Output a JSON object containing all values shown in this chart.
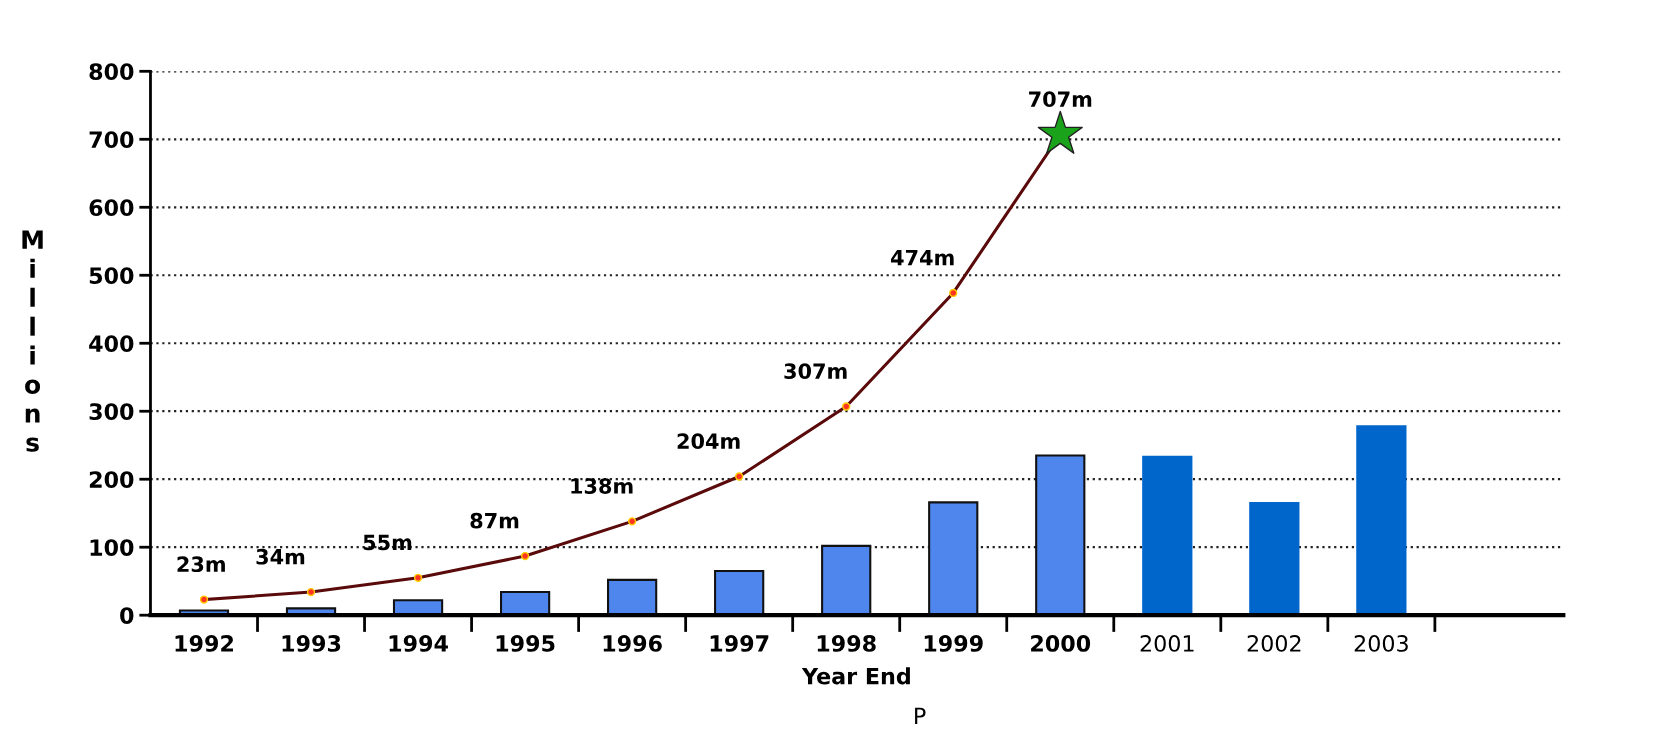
{
  "chart_data": {
    "type": "bar",
    "xlabel": "Year End",
    "ylabel": "Millions",
    "categories": [
      "1992",
      "1993",
      "1994",
      "1995",
      "1996",
      "1997",
      "1998",
      "1999",
      "2000",
      "2001",
      "2002",
      "2003"
    ],
    "series": [
      {
        "colors": [
          "#4f86ee",
          "#4f86ee",
          "#4f86ee",
          "#4f86ee",
          "#4f86ee",
          "#4f86ee",
          "#4f86ee",
          "#4f86ee",
          "#4f86ee",
          "#0066cc",
          "#0066cc",
          "#0066cc"
        ],
        "values": [
          7,
          10,
          22,
          34,
          52,
          65,
          102,
          166,
          235,
          233,
          165,
          278
        ]
      },
      {
        "type": "line",
        "color": "#5a0a0a",
        "marker": "circle",
        "values": [
          23,
          34,
          55,
          87,
          138,
          204,
          307,
          474,
          707,
          null,
          null,
          null
        ],
        "value_labels": [
          "23m",
          "34m",
          "55m",
          "87m",
          "138m",
          "204m",
          "307m",
          "474m",
          "707m",
          null,
          null,
          null
        ]
      },
      {
        "type": "scatter",
        "color": "#1aa31a",
        "marker": "star",
        "values": [
          null,
          null,
          null,
          null,
          null,
          null,
          null,
          null,
          707,
          null,
          null,
          null
        ]
      }
    ],
    "ylim": [
      0,
      800
    ],
    "yticks": [
      0,
      100,
      200,
      300,
      400,
      500,
      600,
      700,
      800
    ],
    "grid": "y",
    "annotations": [
      "P"
    ]
  }
}
